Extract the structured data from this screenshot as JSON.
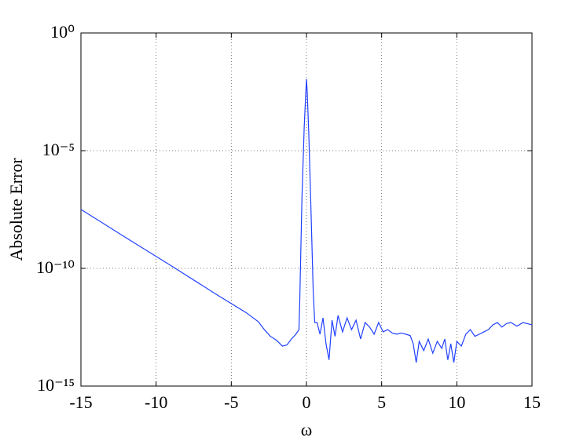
{
  "chart_data": {
    "type": "line",
    "xlabel": "ω",
    "ylabel": "Absolute Error",
    "x": [
      -15,
      -12,
      -9,
      -6,
      -4,
      -3.2,
      -2.8,
      -2.4,
      -2,
      -1.6,
      -1.3,
      -1,
      -0.7,
      -0.5,
      -0.45,
      -0.3,
      -0.15,
      -0.05,
      0,
      0.05,
      0.15,
      0.3,
      0.45,
      0.55,
      0.7,
      0.9,
      1.1,
      1.3,
      1.5,
      1.7,
      1.9,
      2.1,
      2.4,
      2.7,
      3.0,
      3.3,
      3.6,
      3.9,
      4.2,
      4.5,
      4.8,
      5.1,
      5.4,
      5.7,
      6.0,
      6.3,
      6.6,
      6.9,
      7.1,
      7.3,
      7.5,
      7.8,
      8.1,
      8.4,
      8.7,
      9.0,
      9.2,
      9.4,
      9.6,
      9.8,
      10.0,
      10.3,
      10.6,
      10.9,
      11.2,
      11.5,
      11.8,
      12.1,
      12.4,
      12.7,
      13.0,
      13.3,
      13.6,
      14.0,
      14.4,
      15
    ],
    "series": [
      {
        "color": "#2040ff",
        "values": [
          3.2e-08,
          2e-09,
          1.3e-10,
          7.9e-12,
          1.3e-12,
          5.4e-13,
          2.5e-13,
          1.3e-13,
          8.9e-14,
          5e-14,
          5.6e-14,
          1e-13,
          1.6e-13,
          2.5e-13,
          3.2e-12,
          1e-07,
          0.0001,
          0.0025,
          0.011,
          0.0032,
          6.3e-05,
          3.2e-08,
          1e-11,
          5e-13,
          5e-13,
          1.6e-13,
          7.9e-13,
          6.3e-14,
          1.3e-14,
          6.3e-13,
          1.3e-13,
          1e-12,
          2e-13,
          7.9e-13,
          2.5e-13,
          6.3e-13,
          1e-13,
          5e-13,
          3.2e-13,
          1.6e-13,
          5e-13,
          2e-13,
          2.5e-13,
          1.8e-13,
          1.6e-13,
          1.8e-13,
          1.6e-13,
          1.4e-13,
          6.3e-14,
          1e-14,
          7.9e-14,
          3.2e-14,
          1e-13,
          2.5e-14,
          7.9e-14,
          4e-14,
          1e-13,
          1.3e-14,
          6.3e-14,
          1e-14,
          7.9e-14,
          5e-14,
          1.6e-13,
          2.5e-13,
          1.3e-13,
          1.6e-13,
          2e-13,
          2.5e-13,
          4e-13,
          5e-13,
          3.2e-13,
          4.5e-13,
          5e-13,
          3.5e-13,
          5e-13,
          4e-13
        ]
      }
    ],
    "xlim": [
      -15,
      15
    ],
    "xticks": [
      -15,
      -10,
      -5,
      0,
      5,
      10,
      15
    ],
    "ylim": [
      1e-15,
      1
    ],
    "log_y": true,
    "yticks": [
      {
        "value": 1e-15,
        "label": "10⁻¹⁵"
      },
      {
        "value": 1e-10,
        "label": "10⁻¹⁰"
      },
      {
        "value": 1e-05,
        "label": "10⁻⁵"
      },
      {
        "value": 1,
        "label": "10⁰"
      }
    ],
    "grid": true
  }
}
